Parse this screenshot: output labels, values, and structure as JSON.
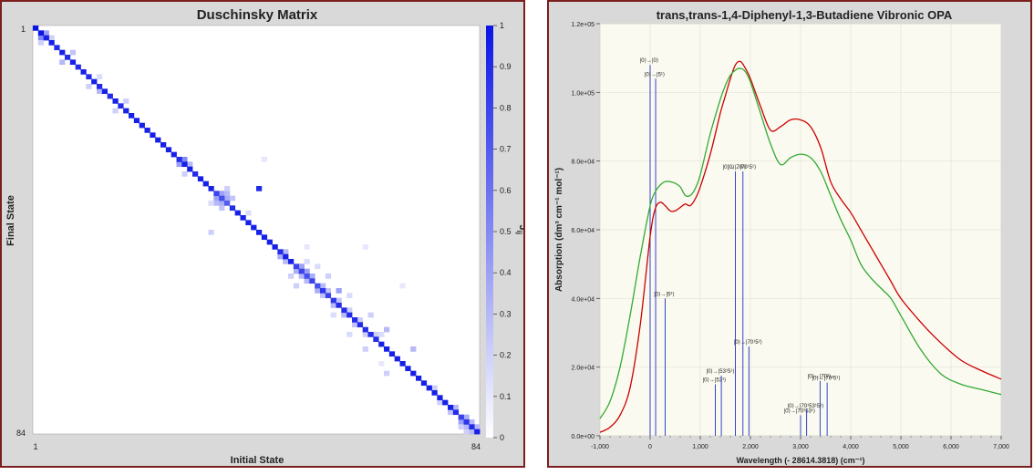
{
  "left_chart": {
    "title": "Duschinsky Matrix",
    "xlabel": "Initial State",
    "ylabel": "Final State",
    "x_ticks": [
      "1",
      "84"
    ],
    "y_ticks": [
      "1",
      "84"
    ],
    "colorbar_label": "J",
    "colorbar_sub": "ij",
    "colorbar_sup": "2",
    "colorbar_ticks": [
      "1",
      "0.9",
      "0.8",
      "0.7",
      "0.6",
      "0.5",
      "0.4",
      "0.3",
      "0.2",
      "0.1",
      "0"
    ]
  },
  "right_chart": {
    "title": "trans,trans-1,4-Diphenyl-1,3-Butadiene Vibronic OPA",
    "xlabel": "Wavelength (- 28614.3818) (cm⁻¹)",
    "ylabel": "Absorption (dm³ cm⁻¹ mol⁻¹)",
    "x_ticks": [
      "-1,000",
      "0",
      "1,000",
      "2,000",
      "3,000",
      "4,000",
      "5,000",
      "6,000",
      "7,000"
    ],
    "y_ticks": [
      "0.0e+00",
      "2.0e+04",
      "4.0e+04",
      "6.0e+04",
      "8.0e+04",
      "1.0e+05",
      "1.2e+05"
    ]
  },
  "chart_data": [
    {
      "type": "heatmap",
      "title": "Duschinsky Matrix",
      "xlabel": "Initial State",
      "ylabel": "Final State",
      "xlim": [
        1,
        84
      ],
      "ylim": [
        1,
        84
      ],
      "colorscale": [
        "#ffffff",
        "#0a14e6"
      ],
      "zlim": [
        0,
        1
      ],
      "diagonal": [
        [
          1,
          1,
          1.0
        ],
        [
          2,
          2,
          1.0
        ],
        [
          3,
          3,
          0.95
        ],
        [
          4,
          4,
          0.95
        ],
        [
          5,
          5,
          0.9
        ],
        [
          6,
          6,
          0.95
        ],
        [
          7,
          7,
          0.9
        ],
        [
          8,
          8,
          0.95
        ],
        [
          9,
          9,
          0.9
        ],
        [
          10,
          10,
          0.95
        ],
        [
          11,
          11,
          0.9
        ],
        [
          12,
          12,
          0.95
        ],
        [
          13,
          13,
          0.9
        ],
        [
          14,
          14,
          0.95
        ],
        [
          15,
          15,
          0.9
        ],
        [
          16,
          16,
          0.95
        ],
        [
          17,
          17,
          0.9
        ],
        [
          18,
          18,
          0.95
        ],
        [
          19,
          19,
          0.95
        ],
        [
          20,
          20,
          0.95
        ],
        [
          21,
          21,
          0.95
        ],
        [
          22,
          22,
          0.95
        ],
        [
          23,
          23,
          0.95
        ],
        [
          24,
          24,
          0.95
        ],
        [
          25,
          25,
          0.95
        ],
        [
          26,
          26,
          0.95
        ],
        [
          27,
          27,
          0.95
        ],
        [
          28,
          28,
          0.9
        ],
        [
          29,
          29,
          0.95
        ],
        [
          30,
          30,
          0.95
        ],
        [
          31,
          31,
          0.9
        ],
        [
          32,
          32,
          0.95
        ],
        [
          33,
          33,
          0.95
        ],
        [
          34,
          34,
          0.95
        ],
        [
          35,
          35,
          0.8
        ],
        [
          36,
          36,
          0.75
        ],
        [
          37,
          37,
          0.7
        ],
        [
          38,
          38,
          0.9
        ],
        [
          39,
          39,
          0.95
        ],
        [
          40,
          40,
          0.95
        ],
        [
          41,
          41,
          0.95
        ],
        [
          42,
          42,
          0.95
        ],
        [
          43,
          43,
          0.95
        ],
        [
          44,
          44,
          0.95
        ],
        [
          45,
          45,
          0.95
        ],
        [
          46,
          46,
          0.95
        ],
        [
          47,
          47,
          0.9
        ],
        [
          48,
          48,
          0.95
        ],
        [
          49,
          49,
          0.95
        ],
        [
          50,
          50,
          0.8
        ],
        [
          51,
          51,
          0.8
        ],
        [
          52,
          52,
          0.75
        ],
        [
          53,
          53,
          0.8
        ],
        [
          54,
          54,
          0.75
        ],
        [
          55,
          55,
          0.85
        ],
        [
          56,
          56,
          0.8
        ],
        [
          57,
          57,
          0.85
        ],
        [
          58,
          58,
          0.9
        ],
        [
          59,
          59,
          0.9
        ],
        [
          60,
          60,
          0.9
        ],
        [
          61,
          61,
          0.9
        ],
        [
          62,
          62,
          0.9
        ],
        [
          63,
          63,
          0.9
        ],
        [
          64,
          64,
          0.9
        ],
        [
          65,
          65,
          0.9
        ],
        [
          66,
          66,
          0.95
        ],
        [
          67,
          67,
          0.95
        ],
        [
          68,
          68,
          0.95
        ],
        [
          69,
          69,
          0.95
        ],
        [
          70,
          70,
          0.95
        ],
        [
          71,
          71,
          0.95
        ],
        [
          72,
          72,
          0.95
        ],
        [
          73,
          73,
          0.95
        ],
        [
          74,
          74,
          0.95
        ],
        [
          75,
          75,
          0.95
        ],
        [
          76,
          76,
          0.95
        ],
        [
          77,
          77,
          0.95
        ],
        [
          78,
          78,
          0.95
        ],
        [
          79,
          79,
          0.95
        ],
        [
          80,
          80,
          0.9
        ],
        [
          81,
          81,
          0.8
        ],
        [
          82,
          82,
          0.85
        ],
        [
          83,
          83,
          0.9
        ],
        [
          84,
          84,
          0.95
        ]
      ],
      "off_diagonal": [
        [
          2,
          3,
          0.5
        ],
        [
          3,
          2,
          0.4
        ],
        [
          2,
          4,
          0.2
        ],
        [
          4,
          3,
          0.2
        ],
        [
          6,
          8,
          0.3
        ],
        [
          8,
          6,
          0.25
        ],
        [
          11,
          13,
          0.2
        ],
        [
          13,
          11,
          0.15
        ],
        [
          13,
          14,
          0.3
        ],
        [
          16,
          18,
          0.2
        ],
        [
          18,
          16,
          0.2
        ],
        [
          29,
          28,
          0.5
        ],
        [
          28,
          29,
          0.4
        ],
        [
          30,
          29,
          0.3
        ],
        [
          29,
          31,
          0.2
        ],
        [
          35,
          36,
          0.4
        ],
        [
          36,
          35,
          0.4
        ],
        [
          36,
          37,
          0.35
        ],
        [
          37,
          36,
          0.35
        ],
        [
          35,
          37,
          0.3
        ],
        [
          37,
          35,
          0.3
        ],
        [
          38,
          36,
          0.25
        ],
        [
          36,
          38,
          0.25
        ],
        [
          39,
          39,
          0.2
        ],
        [
          37,
          34,
          0.2
        ],
        [
          34,
          37,
          0.15
        ],
        [
          43,
          34,
          0.9
        ],
        [
          34,
          43,
          0.2
        ],
        [
          41,
          39,
          0.15
        ],
        [
          48,
          47,
          0.3
        ],
        [
          47,
          48,
          0.35
        ],
        [
          48,
          49,
          0.3
        ],
        [
          50,
          51,
          0.35
        ],
        [
          51,
          50,
          0.4
        ],
        [
          52,
          51,
          0.4
        ],
        [
          51,
          52,
          0.3
        ],
        [
          53,
          52,
          0.35
        ],
        [
          52,
          53,
          0.3
        ],
        [
          54,
          55,
          0.35
        ],
        [
          55,
          54,
          0.3
        ],
        [
          56,
          55,
          0.25
        ],
        [
          55,
          56,
          0.25
        ],
        [
          57,
          58,
          0.3
        ],
        [
          58,
          57,
          0.25
        ],
        [
          59,
          60,
          0.3
        ],
        [
          60,
          59,
          0.2
        ],
        [
          61,
          62,
          0.25
        ],
        [
          62,
          61,
          0.2
        ],
        [
          63,
          64,
          0.2
        ],
        [
          65,
          64,
          0.2
        ],
        [
          49,
          52,
          0.2
        ],
        [
          52,
          49,
          0.15
        ],
        [
          50,
          54,
          0.2
        ],
        [
          54,
          50,
          0.15
        ],
        [
          56,
          52,
          0.2
        ],
        [
          60,
          56,
          0.15
        ],
        [
          57,
          60,
          0.15
        ],
        [
          58,
          55,
          0.4
        ],
        [
          64,
          60,
          0.2
        ],
        [
          60,
          64,
          0.15
        ],
        [
          66,
          64,
          0.15
        ],
        [
          67,
          63,
          0.3
        ],
        [
          63,
          67,
          0.2
        ],
        [
          72,
          67,
          0.3
        ],
        [
          67,
          72,
          0.2
        ],
        [
          76,
          75,
          0.2
        ],
        [
          77,
          78,
          0.2
        ],
        [
          79,
          80,
          0.25
        ],
        [
          80,
          79,
          0.3
        ],
        [
          81,
          82,
          0.4
        ],
        [
          82,
          81,
          0.35
        ],
        [
          83,
          82,
          0.3
        ],
        [
          82,
          83,
          0.3
        ],
        [
          81,
          83,
          0.2
        ],
        [
          83,
          84,
          0.3
        ],
        [
          84,
          83,
          0.3
        ],
        [
          82,
          84,
          0.2
        ],
        [
          70,
          54,
          0.1
        ],
        [
          52,
          46,
          0.1
        ],
        [
          63,
          46,
          0.1
        ],
        [
          66,
          70,
          0.1
        ],
        [
          44,
          28,
          0.1
        ]
      ]
    },
    {
      "type": "line",
      "title": "trans,trans-1,4-Diphenyl-1,3-Butadiene Vibronic OPA",
      "xlabel": "Wavelength (- 28614.3818) (cm⁻¹)",
      "ylabel": "Absorption (dm³ cm⁻¹ mol⁻¹)",
      "xlim": [
        -1000,
        7000
      ],
      "ylim": [
        0,
        120000
      ],
      "series": [
        {
          "color": "#cc0000",
          "x": [
            -1000,
            -800,
            -600,
            -400,
            -200,
            0,
            100,
            200,
            300,
            400,
            500,
            600,
            700,
            800,
            900,
            1000,
            1200,
            1400,
            1500,
            1600,
            1700,
            1800,
            1900,
            2000,
            2200,
            2400,
            2600,
            2800,
            3000,
            3200,
            3400,
            3600,
            3800,
            4000,
            4200,
            4400,
            4600,
            4800,
            5000,
            5400,
            5800,
            6200,
            6600,
            7000
          ],
          "y": [
            1000,
            2500,
            6000,
            14000,
            32000,
            58000,
            66000,
            68000,
            67000,
            65500,
            65500,
            66500,
            67500,
            67000,
            69000,
            72500,
            82000,
            94000,
            99000,
            104000,
            108000,
            109000,
            107000,
            104000,
            96000,
            89000,
            90000,
            92000,
            92000,
            90000,
            84000,
            74000,
            69000,
            65000,
            60000,
            55000,
            50000,
            45000,
            40000,
            33000,
            27000,
            22000,
            19000,
            16500
          ]
        },
        {
          "color": "#33aa33",
          "x": [
            -1000,
            -800,
            -600,
            -400,
            -200,
            0,
            100,
            200,
            300,
            400,
            500,
            600,
            700,
            800,
            900,
            1000,
            1200,
            1400,
            1500,
            1600,
            1700,
            1800,
            1900,
            2000,
            2200,
            2400,
            2600,
            2800,
            3000,
            3200,
            3400,
            3600,
            3800,
            4000,
            4200,
            4400,
            4600,
            4800,
            5000,
            5400,
            5800,
            6200,
            6600,
            7000
          ],
          "y": [
            5000,
            10000,
            20000,
            35000,
            52000,
            67000,
            71000,
            73000,
            74000,
            74000,
            73500,
            72500,
            70000,
            70000,
            72000,
            76000,
            88000,
            98000,
            102000,
            105000,
            106500,
            107000,
            106000,
            103000,
            94000,
            85000,
            79000,
            81000,
            82000,
            81000,
            77000,
            70000,
            63000,
            57000,
            50000,
            46000,
            43000,
            40000,
            35000,
            25000,
            18000,
            15000,
            13500,
            12000
          ]
        }
      ],
      "sticks": [
        {
          "x": 0,
          "y": 108000,
          "label": "|0⟩→|0⟩"
        },
        {
          "x": 110,
          "y": 104000,
          "label": "|0⟩→|5¹⟩"
        },
        {
          "x": 300,
          "y": 40000,
          "label": "|0⟩→|5²⟩"
        },
        {
          "x": 1300,
          "y": 15000,
          "label": "|0⟩→|53¹⟩"
        },
        {
          "x": 1420,
          "y": 17500,
          "label": "|0⟩→|53¹5¹⟩"
        },
        {
          "x": 1700,
          "y": 77000,
          "label": "|0⟩→|70¹⟩"
        },
        {
          "x": 1850,
          "y": 77000,
          "label": "|0⟩→|70¹5¹⟩"
        },
        {
          "x": 1970,
          "y": 26000,
          "label": "|0⟩→|70¹5²⟩"
        },
        {
          "x": 3000,
          "y": 6000,
          "label": "|0⟩→|70¹53¹⟩"
        },
        {
          "x": 3120,
          "y": 7500,
          "label": "|0⟩→|70¹53¹5¹⟩"
        },
        {
          "x": 3390,
          "y": 16000,
          "label": "|0⟩→|70²⟩"
        },
        {
          "x": 3530,
          "y": 15500,
          "label": "|0⟩→|70²5¹⟩"
        }
      ]
    }
  ]
}
